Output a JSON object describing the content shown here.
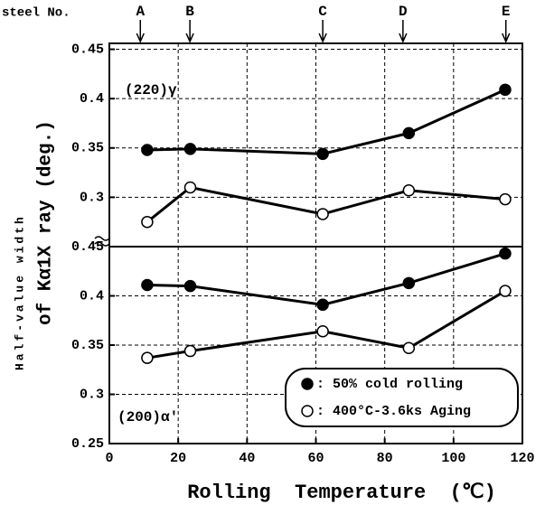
{
  "chart_data": [
    {
      "type": "line",
      "annotation": "(220)γ",
      "steel_label": "steel No.",
      "steels": [
        {
          "label": "A",
          "x": 9
        },
        {
          "label": "B",
          "x": 23.4
        },
        {
          "label": "C",
          "x": 62
        },
        {
          "label": "D",
          "x": 85.3
        },
        {
          "label": "E",
          "x": 115.2
        }
      ],
      "ylabel": [
        "Half-value width",
        "of Kα1X ray (deg.)"
      ],
      "xlim": [
        0,
        120
      ],
      "xticks": [
        20,
        40,
        60,
        80,
        100
      ],
      "ylim": [
        0.25,
        0.456
      ],
      "yticks": [
        0.3,
        0.35,
        0.4,
        0.45
      ],
      "grid": true,
      "series": [
        {
          "marker": "filled",
          "color": "#000",
          "x": [
            11,
            23.5,
            62,
            87,
            115
          ],
          "values": [
            0.348,
            0.349,
            0.344,
            0.365,
            0.409
          ]
        },
        {
          "marker": "open",
          "color": "#000",
          "x": [
            11,
            23.5,
            62,
            87,
            115
          ],
          "values": [
            0.275,
            0.31,
            0.283,
            0.307,
            0.298
          ]
        }
      ]
    },
    {
      "type": "line",
      "annotation": "(200)α'",
      "xlabel": "Rolling  Temperature  (℃)",
      "xlim": [
        0,
        120
      ],
      "xticks": [
        0,
        20,
        40,
        60,
        80,
        100,
        120
      ],
      "ylim": [
        0.25,
        0.45
      ],
      "yticks": [
        0.25,
        0.3,
        0.35,
        0.4,
        0.45
      ],
      "grid": true,
      "legend": "lower right",
      "series": [
        {
          "name": ": 50% cold rolling",
          "marker": "filled",
          "color": "#000",
          "x": [
            11,
            23.5,
            62,
            87,
            115
          ],
          "values": [
            0.411,
            0.41,
            0.391,
            0.413,
            0.443
          ]
        },
        {
          "name": ": 400°C-3.6ks Aging",
          "marker": "open",
          "color": "#000",
          "x": [
            11,
            23.5,
            62,
            87,
            115
          ],
          "values": [
            0.337,
            0.344,
            0.364,
            0.347,
            0.405
          ]
        }
      ]
    }
  ]
}
